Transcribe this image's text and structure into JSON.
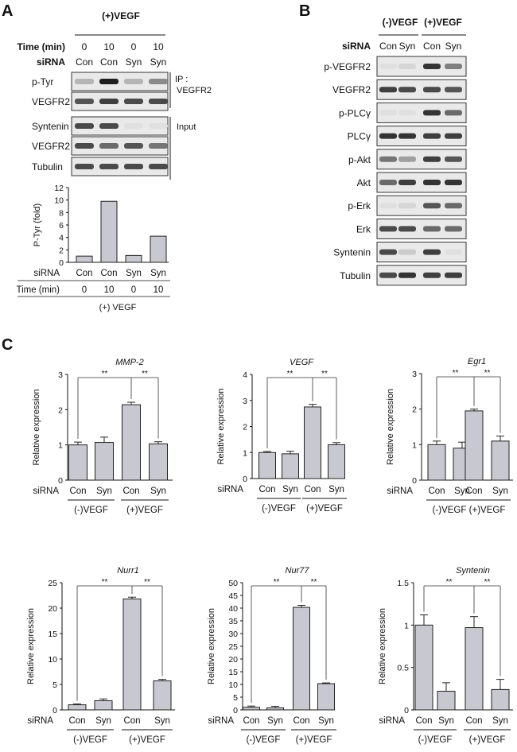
{
  "panelA": {
    "letter": "A",
    "treatment": "(+)VEGF",
    "time_label": "Time (min)",
    "times": [
      "0",
      "10",
      "0",
      "10"
    ],
    "sirna_label": "siRNA",
    "sirna": [
      "Con",
      "Con",
      "Syn",
      "Syn"
    ],
    "blots": [
      {
        "label": "p-Tyr",
        "intensity": [
          0.25,
          0.95,
          0.25,
          0.45
        ]
      },
      {
        "label": "VEGFR2",
        "intensity": [
          0.7,
          0.8,
          0.75,
          0.75
        ]
      },
      {
        "label": "Syntenin",
        "intensity": [
          0.75,
          0.75,
          0.05,
          0.05
        ]
      },
      {
        "label": "VEGFR2",
        "intensity": [
          0.75,
          0.6,
          0.7,
          0.55
        ]
      },
      {
        "label": "Tubulin",
        "intensity": [
          0.75,
          0.75,
          0.75,
          0.75
        ]
      }
    ],
    "ip_label_1": "IP :",
    "ip_label_2": "VEGFR2",
    "input_label": "Input",
    "footer_treatment": "(+) VEGF"
  },
  "panelB": {
    "letter": "B",
    "group_neg": "(-)VEGF",
    "group_pos": "(+)VEGF",
    "sirna_label": "siRNA",
    "sirna": [
      "Con",
      "Syn",
      "Con",
      "Syn"
    ],
    "blots": [
      {
        "label": "p-VEGFR2",
        "intensity": [
          0.05,
          0.1,
          0.85,
          0.5
        ]
      },
      {
        "label": "VEGFR2",
        "intensity": [
          0.8,
          0.75,
          0.75,
          0.7
        ]
      },
      {
        "label": "p-PLCγ",
        "intensity": [
          0.05,
          0.05,
          0.85,
          0.6
        ]
      },
      {
        "label": "PLCγ",
        "intensity": [
          0.85,
          0.85,
          0.8,
          0.8
        ]
      },
      {
        "label": "p-Akt",
        "intensity": [
          0.55,
          0.35,
          0.8,
          0.7
        ]
      },
      {
        "label": "Akt",
        "intensity": [
          0.6,
          0.8,
          0.85,
          0.85
        ]
      },
      {
        "label": "p-Erk",
        "intensity": [
          0.05,
          0.1,
          0.7,
          0.6
        ]
      },
      {
        "label": "Erk",
        "intensity": [
          0.75,
          0.75,
          0.6,
          0.6
        ]
      },
      {
        "label": "Syntenin",
        "intensity": [
          0.75,
          0.15,
          0.8,
          0.05
        ]
      },
      {
        "label": "Tubulin",
        "intensity": [
          0.75,
          0.85,
          0.8,
          0.8
        ]
      }
    ]
  },
  "panelC": {
    "letter": "C",
    "sig": "**"
  },
  "chart_data": [
    {
      "type": "bar",
      "id": "ptyr",
      "categories": [
        "Con",
        "Con",
        "Syn",
        "Syn"
      ],
      "values": [
        1.0,
        9.8,
        1.1,
        4.2
      ],
      "ylabel": "P-Tyr (fold)",
      "ylim": [
        0,
        12
      ],
      "yticks": [
        0,
        2,
        4,
        6,
        8,
        10,
        12
      ],
      "row1_label": "siRNA",
      "row2_label": "Time (min)",
      "row2": [
        "0",
        "10",
        "0",
        "10"
      ]
    },
    {
      "type": "bar",
      "id": "mmp2",
      "title": "MMP-2",
      "categories": [
        "Con",
        "Syn",
        "Con",
        "Syn"
      ],
      "values": [
        1.0,
        1.07,
        2.14,
        1.03
      ],
      "errors": [
        0.08,
        0.15,
        0.07,
        0.06
      ],
      "ylabel": "Relative expression",
      "ylim": [
        0,
        3
      ],
      "yticks": [
        0,
        1,
        2,
        3
      ],
      "groups": [
        "(-)VEGF",
        "(+)VEGF"
      ],
      "sirna_label": "siRNA"
    },
    {
      "type": "bar",
      "id": "vegf",
      "title": "VEGF",
      "categories": [
        "Con",
        "Syn",
        "Con",
        "Syn"
      ],
      "values": [
        1.0,
        0.95,
        2.75,
        1.3
      ],
      "errors": [
        0.04,
        0.1,
        0.1,
        0.08
      ],
      "ylabel": "Relative expression",
      "ylim": [
        0,
        4
      ],
      "yticks": [
        0,
        1,
        2,
        3,
        4
      ],
      "groups": [
        "(-)VEGF",
        "(+)VEGF"
      ],
      "sirna_label": "siRNA"
    },
    {
      "type": "bar",
      "id": "egr1",
      "title": "Egr1",
      "categories": [
        "Con",
        "Syn",
        "Con",
        "Syn"
      ],
      "values": [
        1.0,
        0.9,
        1.95,
        1.1
      ],
      "errors": [
        0.1,
        0.17,
        0.05,
        0.14
      ],
      "ylabel": "Relative expression",
      "ylim": [
        0,
        3
      ],
      "yticks": [
        0,
        1,
        2,
        3
      ],
      "groups": [
        "(-)VEGF",
        "(+)VEGF"
      ],
      "sirna_label": "siRNA"
    },
    {
      "type": "bar",
      "id": "nurr1",
      "title": "Nurr1",
      "categories": [
        "Con",
        "Syn",
        "Con",
        "Syn"
      ],
      "values": [
        1.0,
        1.8,
        21.8,
        5.7
      ],
      "errors": [
        0.15,
        0.35,
        0.35,
        0.3
      ],
      "ylabel": "Relative expression",
      "ylim": [
        0,
        25
      ],
      "yticks": [
        0,
        5,
        10,
        15,
        20,
        25
      ],
      "groups": [
        "(-)VEGF",
        "(+)VEGF"
      ],
      "sirna_label": "siRNA"
    },
    {
      "type": "bar",
      "id": "nur77",
      "title": "Nur77",
      "categories": [
        "Con",
        "Syn",
        "Con",
        "Syn"
      ],
      "values": [
        1.0,
        0.8,
        40.3,
        10.3
      ],
      "errors": [
        0.5,
        0.6,
        0.8,
        0.3
      ],
      "ylabel": "Relative expression",
      "ylim": [
        0,
        50
      ],
      "yticks": [
        0,
        5,
        10,
        15,
        20,
        25,
        30,
        35,
        40,
        45,
        50
      ],
      "groups": [
        "(-)VEGF",
        "(+)VEGF"
      ],
      "sirna_label": "siRNA"
    },
    {
      "type": "bar",
      "id": "syntenin",
      "title": "Syntenin",
      "categories": [
        "Con",
        "Syn",
        "Con",
        "Syn"
      ],
      "values": [
        1.0,
        0.22,
        0.97,
        0.24
      ],
      "errors": [
        0.12,
        0.1,
        0.13,
        0.12
      ],
      "ylabel": "Relative expression",
      "ylim": [
        0,
        1.5
      ],
      "yticks": [
        0,
        0.5,
        1,
        1.5
      ],
      "groups": [
        "(-)VEGF",
        "(+)VEGF"
      ],
      "sirna_label": "siRNA"
    }
  ]
}
